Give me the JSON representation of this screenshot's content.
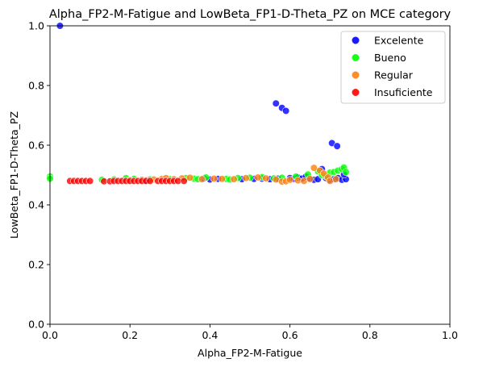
{
  "chart_data": {
    "type": "scatter",
    "title": "Alpha_FP2-M-Fatigue and LowBeta_FP1-D-Theta_PZ on MCE category",
    "xlabel": "Alpha_FP2-M-Fatigue",
    "ylabel": "LowBeta_FP1-D-Theta_PZ",
    "xlim": [
      0.0,
      1.0
    ],
    "ylim": [
      0.0,
      1.0
    ],
    "xticks": [
      "0.0",
      "0.2",
      "0.4",
      "0.6",
      "0.8",
      "1.0"
    ],
    "yticks": [
      "0.0",
      "0.2",
      "0.4",
      "0.6",
      "0.8",
      "1.0"
    ],
    "grid": false,
    "legend_position": "top-right",
    "series": [
      {
        "name": "Excelente",
        "color": "#0000ff",
        "points": [
          [
            0.025,
            1.0
          ],
          [
            0.565,
            0.74
          ],
          [
            0.58,
            0.725
          ],
          [
            0.59,
            0.715
          ],
          [
            0.705,
            0.607
          ],
          [
            0.718,
            0.597
          ],
          [
            0.24,
            0.482
          ],
          [
            0.385,
            0.488
          ],
          [
            0.4,
            0.485
          ],
          [
            0.42,
            0.487
          ],
          [
            0.48,
            0.486
          ],
          [
            0.51,
            0.487
          ],
          [
            0.53,
            0.488
          ],
          [
            0.55,
            0.486
          ],
          [
            0.57,
            0.488
          ],
          [
            0.6,
            0.49
          ],
          [
            0.61,
            0.487
          ],
          [
            0.62,
            0.492
          ],
          [
            0.63,
            0.488
          ],
          [
            0.64,
            0.495
          ],
          [
            0.65,
            0.486
          ],
          [
            0.66,
            0.484
          ],
          [
            0.67,
            0.486
          ],
          [
            0.68,
            0.52
          ],
          [
            0.69,
            0.49
          ],
          [
            0.7,
            0.484
          ],
          [
            0.71,
            0.486
          ],
          [
            0.72,
            0.49
          ],
          [
            0.73,
            0.484
          ],
          [
            0.74,
            0.486
          ],
          [
            0.735,
            0.502
          ]
        ]
      },
      {
        "name": "Bueno",
        "color": "#00ff00",
        "points": [
          [
            0.0,
            0.495
          ],
          [
            0.0,
            0.488
          ],
          [
            0.13,
            0.484
          ],
          [
            0.16,
            0.485
          ],
          [
            0.19,
            0.49
          ],
          [
            0.21,
            0.487
          ],
          [
            0.25,
            0.485
          ],
          [
            0.3,
            0.486
          ],
          [
            0.34,
            0.49
          ],
          [
            0.36,
            0.488
          ],
          [
            0.37,
            0.486
          ],
          [
            0.39,
            0.492
          ],
          [
            0.44,
            0.487
          ],
          [
            0.45,
            0.485
          ],
          [
            0.47,
            0.49
          ],
          [
            0.5,
            0.491
          ],
          [
            0.53,
            0.493
          ],
          [
            0.56,
            0.489
          ],
          [
            0.58,
            0.491
          ],
          [
            0.615,
            0.495
          ],
          [
            0.645,
            0.502
          ],
          [
            0.67,
            0.512
          ],
          [
            0.68,
            0.5
          ],
          [
            0.69,
            0.496
          ],
          [
            0.7,
            0.508
          ],
          [
            0.71,
            0.51
          ],
          [
            0.72,
            0.515
          ],
          [
            0.73,
            0.52
          ],
          [
            0.735,
            0.525
          ],
          [
            0.74,
            0.51
          ]
        ]
      },
      {
        "name": "Regular",
        "color": "#ff7f0e",
        "points": [
          [
            0.2,
            0.483
          ],
          [
            0.23,
            0.484
          ],
          [
            0.26,
            0.485
          ],
          [
            0.28,
            0.487
          ],
          [
            0.29,
            0.49
          ],
          [
            0.31,
            0.486
          ],
          [
            0.33,
            0.489
          ],
          [
            0.35,
            0.491
          ],
          [
            0.38,
            0.486
          ],
          [
            0.41,
            0.488
          ],
          [
            0.43,
            0.487
          ],
          [
            0.46,
            0.486
          ],
          [
            0.49,
            0.49
          ],
          [
            0.52,
            0.492
          ],
          [
            0.54,
            0.489
          ],
          [
            0.565,
            0.485
          ],
          [
            0.58,
            0.478
          ],
          [
            0.59,
            0.479
          ],
          [
            0.6,
            0.484
          ],
          [
            0.62,
            0.482
          ],
          [
            0.635,
            0.48
          ],
          [
            0.65,
            0.487
          ],
          [
            0.66,
            0.524
          ],
          [
            0.675,
            0.515
          ],
          [
            0.685,
            0.505
          ],
          [
            0.695,
            0.492
          ],
          [
            0.7,
            0.48
          ],
          [
            0.715,
            0.486
          ]
        ]
      },
      {
        "name": "Insuficiente",
        "color": "#ff0000",
        "points": [
          [
            0.05,
            0.48
          ],
          [
            0.06,
            0.48
          ],
          [
            0.07,
            0.48
          ],
          [
            0.08,
            0.48
          ],
          [
            0.09,
            0.48
          ],
          [
            0.1,
            0.48
          ],
          [
            0.135,
            0.479
          ],
          [
            0.15,
            0.479
          ],
          [
            0.16,
            0.48
          ],
          [
            0.17,
            0.48
          ],
          [
            0.18,
            0.48
          ],
          [
            0.19,
            0.48
          ],
          [
            0.2,
            0.48
          ],
          [
            0.21,
            0.48
          ],
          [
            0.22,
            0.48
          ],
          [
            0.23,
            0.48
          ],
          [
            0.24,
            0.48
          ],
          [
            0.25,
            0.48
          ],
          [
            0.27,
            0.48
          ],
          [
            0.28,
            0.48
          ],
          [
            0.29,
            0.48
          ],
          [
            0.3,
            0.48
          ],
          [
            0.31,
            0.48
          ],
          [
            0.32,
            0.48
          ],
          [
            0.335,
            0.48
          ]
        ]
      }
    ]
  }
}
